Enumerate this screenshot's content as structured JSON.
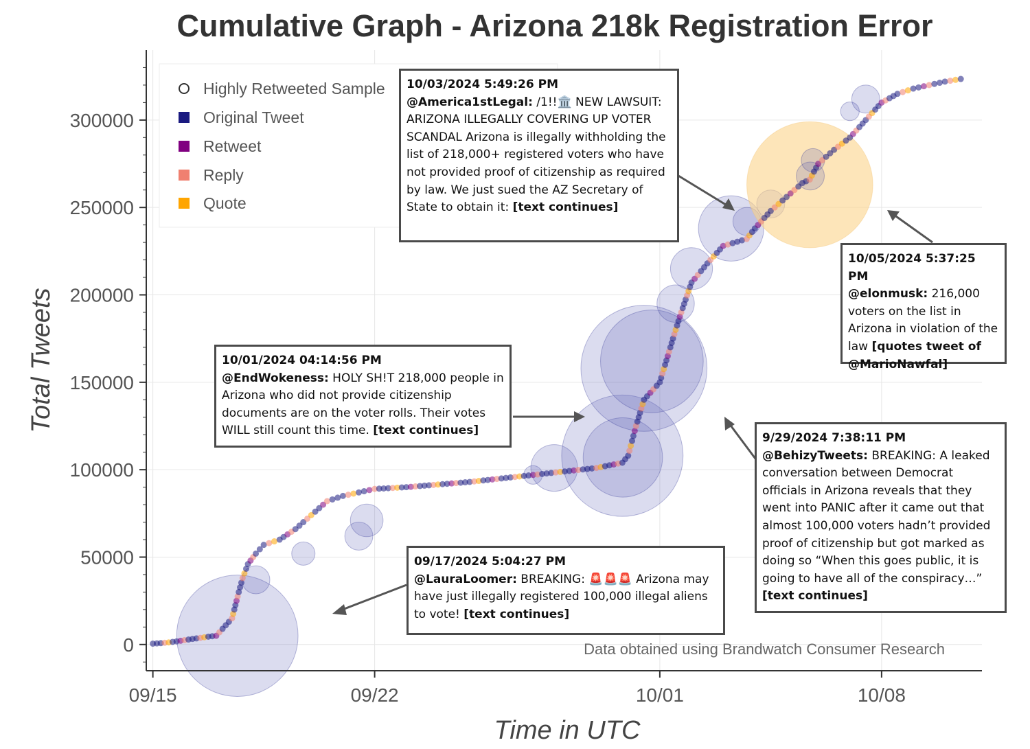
{
  "chart_data": {
    "type": "scatter",
    "title": "Cumulative Graph - Arizona 218k Registration Error",
    "xlabel": "Time in UTC",
    "ylabel": "Total Tweets",
    "x_ticks": [
      "09/15",
      "09/22",
      "10/01",
      "10/08"
    ],
    "y_ticks": [
      0,
      50000,
      100000,
      150000,
      200000,
      250000,
      300000
    ],
    "xlim": [
      "2024-09-14T19:00",
      "2024-10-11T04:00"
    ],
    "ylim": [
      -15000,
      340000
    ],
    "grid": true,
    "legend_position": "top-left",
    "legend": [
      {
        "name": "Highly Retweeted Sample",
        "marker": "open-circle",
        "color": "#333333"
      },
      {
        "name": "Original Tweet",
        "marker": "square",
        "color": "#1a1a80"
      },
      {
        "name": "Retweet",
        "marker": "square",
        "color": "#800080"
      },
      {
        "name": "Reply",
        "marker": "square",
        "color": "#f08070"
      },
      {
        "name": "Quote",
        "marker": "square",
        "color": "#ffa500"
      }
    ],
    "source_note": "Data obtained using Brandwatch Consumer Research",
    "series": [
      {
        "name": "Tweets",
        "x": [
          "2024-09-15T00:00",
          "2024-09-15T06:00",
          "2024-09-15T12:00",
          "2024-09-15T18:00",
          "2024-09-16T00:00",
          "2024-09-16T06:00",
          "2024-09-16T12:00",
          "2024-09-16T18:00",
          "2024-09-17T00:00",
          "2024-09-17T12:00",
          "2024-09-17T17:04",
          "2024-09-17T20:00",
          "2024-09-18T00:00",
          "2024-09-18T06:00",
          "2024-09-18T12:00",
          "2024-09-19T00:00",
          "2024-09-19T12:00",
          "2024-09-20T00:00",
          "2024-09-20T12:00",
          "2024-09-21T00:00",
          "2024-09-21T12:00",
          "2024-09-22T00:00",
          "2024-09-23T00:00",
          "2024-09-24T00:00",
          "2024-09-25T00:00",
          "2024-09-26T00:00",
          "2024-09-27T00:00",
          "2024-09-28T00:00",
          "2024-09-29T00:00",
          "2024-09-29T19:38",
          "2024-09-30T00:00",
          "2024-09-30T06:00",
          "2024-09-30T12:00",
          "2024-10-01T00:00",
          "2024-10-01T06:00",
          "2024-10-01T12:00",
          "2024-10-01T16:14",
          "2024-10-02T00:00",
          "2024-10-02T12:00",
          "2024-10-03T00:00",
          "2024-10-03T17:49",
          "2024-10-04T00:00",
          "2024-10-04T12:00",
          "2024-10-05T00:00",
          "2024-10-05T12:00",
          "2024-10-05T17:37",
          "2024-10-06T00:00",
          "2024-10-06T12:00",
          "2024-10-07T00:00",
          "2024-10-07T12:00",
          "2024-10-08T00:00",
          "2024-10-08T12:00",
          "2024-10-09T00:00",
          "2024-10-09T12:00",
          "2024-10-10T00:00",
          "2024-10-10T12:00"
        ],
        "y": [
          500,
          800,
          1200,
          1800,
          2500,
          3200,
          3800,
          4500,
          5000,
          15000,
          30000,
          38000,
          46000,
          52000,
          57000,
          60000,
          66000,
          74000,
          82000,
          85000,
          87000,
          89000,
          90000,
          91500,
          93000,
          95000,
          97000,
          99000,
          101000,
          104000,
          108000,
          125000,
          140000,
          150000,
          165000,
          180000,
          190000,
          207000,
          218000,
          228000,
          232000,
          238000,
          248000,
          256000,
          264000,
          266000,
          275000,
          283000,
          290000,
          300000,
          310000,
          315000,
          318000,
          320000,
          322000,
          323500
        ]
      }
    ],
    "highly_retweeted_sample": [
      {
        "x": "2024-09-17T16:00",
        "y": 5000,
        "size": 2.6
      },
      {
        "x": "2024-09-18T06:00",
        "y": 37000,
        "size": 0.6
      },
      {
        "x": "2024-09-19T18:00",
        "y": 52000,
        "size": 0.5
      },
      {
        "x": "2024-09-21T12:00",
        "y": 62000,
        "size": 0.6
      },
      {
        "x": "2024-09-21T18:00",
        "y": 71000,
        "size": 0.7
      },
      {
        "x": "2024-09-27T00:00",
        "y": 97000,
        "size": 0.4
      },
      {
        "x": "2024-09-27T16:00",
        "y": 101000,
        "size": 1.0
      },
      {
        "x": "2024-09-29T19:38",
        "y": 108000,
        "size": 2.6
      },
      {
        "x": "2024-09-29T20:00",
        "y": 107000,
        "size": 1.7
      },
      {
        "x": "2024-09-30T12:00",
        "y": 158000,
        "size": 2.7
      },
      {
        "x": "2024-09-30T18:00",
        "y": 162000,
        "size": 2.2
      },
      {
        "x": "2024-10-01T12:00",
        "y": 195000,
        "size": 0.8
      },
      {
        "x": "2024-10-02T00:00",
        "y": 215000,
        "size": 0.9
      },
      {
        "x": "2024-10-03T06:00",
        "y": 238000,
        "size": 1.4
      },
      {
        "x": "2024-10-03T18:00",
        "y": 242000,
        "size": 0.6
      },
      {
        "x": "2024-10-04T12:00",
        "y": 252000,
        "size": 0.6
      },
      {
        "x": "2024-10-05T17:37",
        "y": 263000,
        "size": 2.7
      },
      {
        "x": "2024-10-05T18:00",
        "y": 268000,
        "size": 0.6
      },
      {
        "x": "2024-10-05T20:00",
        "y": 277000,
        "size": 0.5
      },
      {
        "x": "2024-10-07T00:00",
        "y": 305000,
        "size": 0.4
      },
      {
        "x": "2024-10-07T12:00",
        "y": 312000,
        "size": 0.6
      }
    ],
    "annotations": [
      {
        "timestamp": "09/17/2024 5:04:27 PM",
        "user": "@LauraLoomer:",
        "text": " BREAKING: 🚨🚨🚨 Arizona may have just illegally registered 100,000 illegal aliens to vote! ",
        "tail": "[text continues]"
      },
      {
        "timestamp": "10/01/2024 04:14:56 PM",
        "user": "@EndWokeness:",
        "text": " HOLY SH!T 218,000 people in Arizona who did not provide citizenship documents are on the voter rolls. Their votes WILL still count this time. ",
        "tail": "[text continues]"
      },
      {
        "timestamp": "10/03/2024 5:49:26 PM",
        "user": "@America1stLegal:",
        "text": " /1!!🏛️ NEW LAWSUIT: ARIZONA ILLEGALLY COVERING UP VOTER SCANDAL Arizona is illegally withholding the list of 218,000+ registered voters who have not provided proof of citizenship as required by law. We just sued the AZ Secretary of State to obtain it: ",
        "tail": "[text continues]"
      },
      {
        "timestamp": "10/05/2024 5:37:25 PM",
        "user": "@elonmusk:",
        "text": " 216,000 voters on the list in Arizona in violation of the law ",
        "tail": "[quotes tweet of @MarioNawfal]"
      },
      {
        "timestamp": "9/29/2024 7:38:11 PM",
        "user": "@BehizyTweets:",
        "text": " BREAKING: A leaked conversation between Democrat officials in Arizona reveals that they went into PANIC after it came out that almost 100,000 voters hadn’t provided proof of citizenship but got marked as doing so “When this goes public, it is going to have all of the conspiracy…” ",
        "tail": "[text continues]"
      }
    ]
  },
  "colors": {
    "original": "#1a1a80",
    "retweet": "#800080",
    "reply": "#f08070",
    "quote": "#ffa500",
    "sample_fill": "#5b5fb4",
    "quote_bubble": "#fbd48a"
  }
}
